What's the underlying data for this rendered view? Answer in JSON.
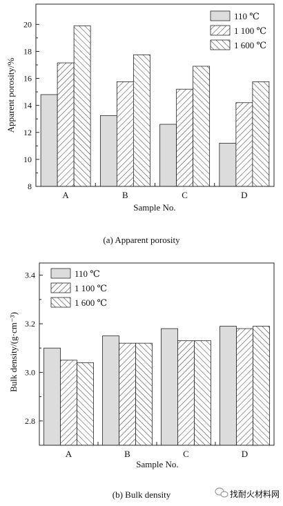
{
  "chart_data": [
    {
      "type": "bar",
      "caption": "(a) Apparent porosity",
      "xlabel": "Sample No.",
      "ylabel": "Apparent porosity/%",
      "categories": [
        "A",
        "B",
        "C",
        "D"
      ],
      "ylim": [
        8,
        21.5
      ],
      "yticks": [
        8,
        10,
        12,
        14,
        16,
        18,
        20
      ],
      "legend_position": "top-right",
      "series": [
        {
          "name": "110 ℃",
          "pattern": "solid",
          "values": [
            14.8,
            13.25,
            12.6,
            11.2
          ]
        },
        {
          "name": "1 100 ℃",
          "pattern": "hatch-forward",
          "values": [
            17.15,
            15.75,
            15.2,
            14.2
          ]
        },
        {
          "name": "1 600 ℃",
          "pattern": "hatch-back",
          "values": [
            19.9,
            17.75,
            16.9,
            15.75
          ]
        }
      ]
    },
    {
      "type": "bar",
      "caption": "(b) Bulk density",
      "xlabel": "Sample No.",
      "ylabel": "Bulk density/(g·cm⁻³)",
      "categories": [
        "A",
        "B",
        "C",
        "D"
      ],
      "ylim": [
        2.7,
        3.45
      ],
      "yticks": [
        2.8,
        3.0,
        3.2,
        3.4
      ],
      "legend_position": "top-left",
      "series": [
        {
          "name": "110 ℃",
          "pattern": "solid",
          "values": [
            3.1,
            3.15,
            3.18,
            3.19
          ]
        },
        {
          "name": "1 100 ℃",
          "pattern": "hatch-forward",
          "values": [
            3.05,
            3.12,
            3.13,
            3.18
          ]
        },
        {
          "name": "1 600 ℃",
          "pattern": "hatch-back",
          "values": [
            3.04,
            3.12,
            3.13,
            3.19
          ]
        }
      ]
    }
  ],
  "watermark": {
    "text": "找耐火材料网",
    "icon": "wechat-icon"
  },
  "colors": {
    "solid_fill": "#dcdcdc",
    "stroke": "#222222",
    "hatch": "#333333"
  }
}
